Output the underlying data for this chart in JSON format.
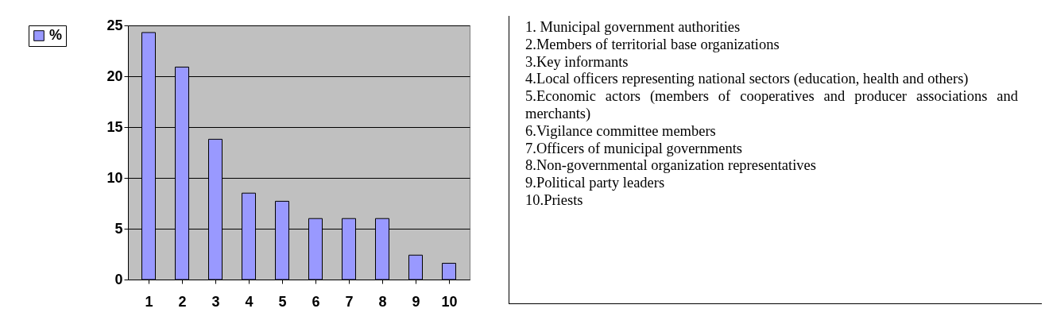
{
  "chart_data": {
    "type": "bar",
    "categories": [
      "1",
      "2",
      "3",
      "4",
      "5",
      "6",
      "7",
      "8",
      "9",
      "10"
    ],
    "series": [
      {
        "name": "%",
        "color": "#9999ff",
        "values": [
          24.3,
          20.9,
          13.8,
          8.5,
          7.7,
          6,
          6,
          6,
          2.4,
          1.6
        ]
      }
    ],
    "ylim": [
      0,
      25
    ],
    "yticks": [
      0,
      5,
      10,
      15,
      20,
      25
    ],
    "grid": "y",
    "legend": "left",
    "annotations": [
      "1. Municipal government authorities",
      "2.Members of territorial base organizations",
      "3.Key informants",
      "4.Local officers representing national sectors (education, health and others)",
      "5.Economic actors (members of cooperatives and producer associations and merchants)",
      "6.Vigilance committee members",
      "7.Officers of municipal governments",
      "8.Non-governmental organization representatives",
      "9.Political party leaders",
      "10.Priests"
    ]
  }
}
